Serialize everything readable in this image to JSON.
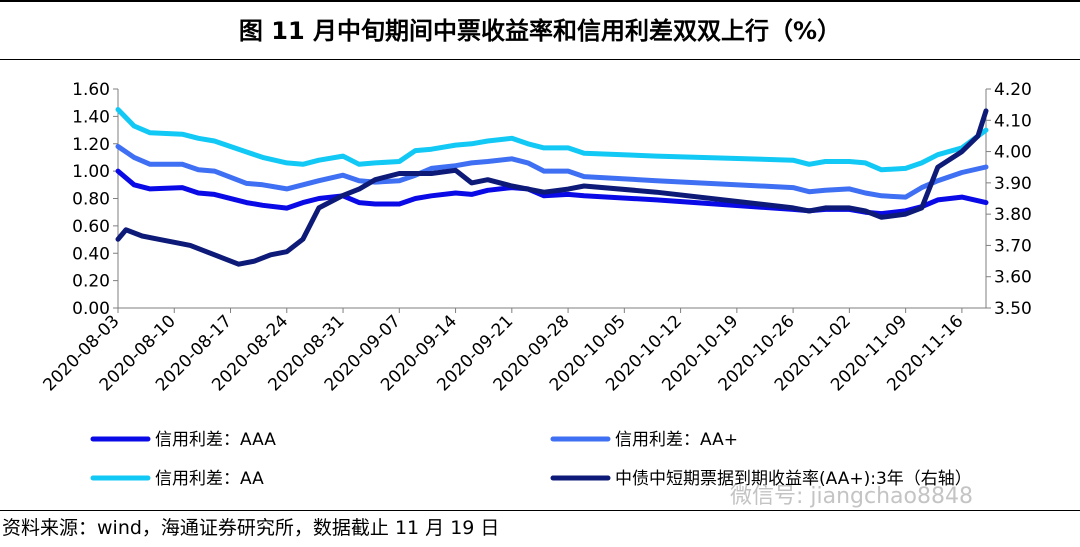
{
  "title": "图 11 月中旬期间中票收益率和信用利差双双上行（%）",
  "source": "资料来源：wind，海通证券研究所，数据截止 11 月 19 日",
  "watermark": "微信号: jiangchao8848",
  "chart_data": {
    "type": "line",
    "left_ylim": [
      0.0,
      1.6
    ],
    "left_ticks": [
      "0.00",
      "0.20",
      "0.40",
      "0.60",
      "0.80",
      "1.00",
      "1.20",
      "1.40",
      "1.60"
    ],
    "right_ylim": [
      3.5,
      4.2
    ],
    "right_ticks": [
      "3.50",
      "3.60",
      "3.70",
      "3.80",
      "3.90",
      "4.00",
      "4.10",
      "4.20"
    ],
    "x_ticks": [
      "2020-08-03",
      "2020-08-10",
      "2020-08-17",
      "2020-08-24",
      "2020-08-31",
      "2020-09-07",
      "2020-09-14",
      "2020-09-21",
      "2020-09-28",
      "2020-10-05",
      "2020-10-12",
      "2020-10-19",
      "2020-10-26",
      "2020-11-02",
      "2020-11-09",
      "2020-11-16"
    ],
    "x_range": [
      "2020-08-03",
      "2020-11-19"
    ],
    "legend_position": "bottom",
    "series": [
      {
        "name": "信用利差：AAA",
        "axis": "left",
        "color": "#0a0ae6",
        "x": [
          "2020-08-03",
          "2020-08-05",
          "2020-08-07",
          "2020-08-11",
          "2020-08-13",
          "2020-08-15",
          "2020-08-19",
          "2020-08-21",
          "2020-08-24",
          "2020-08-26",
          "2020-08-28",
          "2020-08-31",
          "2020-09-02",
          "2020-09-04",
          "2020-09-07",
          "2020-09-09",
          "2020-09-11",
          "2020-09-14",
          "2020-09-16",
          "2020-09-18",
          "2020-09-21",
          "2020-09-23",
          "2020-09-25",
          "2020-09-28",
          "2020-09-30",
          "2020-10-09",
          "2020-10-26",
          "2020-10-28",
          "2020-10-30",
          "2020-11-02",
          "2020-11-04",
          "2020-11-06",
          "2020-11-09",
          "2020-11-11",
          "2020-11-13",
          "2020-11-16",
          "2020-11-19"
        ],
        "y": [
          1.0,
          0.9,
          0.87,
          0.88,
          0.84,
          0.83,
          0.77,
          0.75,
          0.73,
          0.77,
          0.8,
          0.82,
          0.77,
          0.76,
          0.76,
          0.8,
          0.82,
          0.84,
          0.83,
          0.86,
          0.88,
          0.87,
          0.82,
          0.83,
          0.82,
          0.79,
          0.72,
          0.71,
          0.72,
          0.72,
          0.7,
          0.69,
          0.71,
          0.74,
          0.79,
          0.81,
          0.77
        ]
      },
      {
        "name": "信用利差：AA+",
        "axis": "left",
        "color": "#3f6ff2",
        "x": [
          "2020-08-03",
          "2020-08-05",
          "2020-08-07",
          "2020-08-11",
          "2020-08-13",
          "2020-08-15",
          "2020-08-19",
          "2020-08-21",
          "2020-08-24",
          "2020-08-26",
          "2020-08-28",
          "2020-08-31",
          "2020-09-02",
          "2020-09-04",
          "2020-09-07",
          "2020-09-09",
          "2020-09-11",
          "2020-09-14",
          "2020-09-16",
          "2020-09-18",
          "2020-09-21",
          "2020-09-23",
          "2020-09-25",
          "2020-09-28",
          "2020-09-30",
          "2020-10-09",
          "2020-10-26",
          "2020-10-28",
          "2020-10-30",
          "2020-11-02",
          "2020-11-04",
          "2020-11-06",
          "2020-11-09",
          "2020-11-11",
          "2020-11-13",
          "2020-11-16",
          "2020-11-19"
        ],
        "y": [
          1.18,
          1.1,
          1.05,
          1.05,
          1.01,
          1.0,
          0.91,
          0.9,
          0.87,
          0.9,
          0.93,
          0.97,
          0.93,
          0.92,
          0.93,
          0.97,
          1.02,
          1.04,
          1.06,
          1.07,
          1.09,
          1.06,
          1.0,
          1.0,
          0.96,
          0.93,
          0.88,
          0.85,
          0.86,
          0.87,
          0.84,
          0.82,
          0.81,
          0.88,
          0.93,
          0.99,
          1.03
        ]
      },
      {
        "name": "信用利差：AA",
        "axis": "left",
        "color": "#12c8f5",
        "x": [
          "2020-08-03",
          "2020-08-05",
          "2020-08-07",
          "2020-08-11",
          "2020-08-13",
          "2020-08-15",
          "2020-08-19",
          "2020-08-21",
          "2020-08-24",
          "2020-08-26",
          "2020-08-28",
          "2020-08-31",
          "2020-09-02",
          "2020-09-04",
          "2020-09-07",
          "2020-09-09",
          "2020-09-11",
          "2020-09-14",
          "2020-09-16",
          "2020-09-18",
          "2020-09-21",
          "2020-09-23",
          "2020-09-25",
          "2020-09-28",
          "2020-09-30",
          "2020-10-09",
          "2020-10-26",
          "2020-10-28",
          "2020-10-30",
          "2020-11-02",
          "2020-11-04",
          "2020-11-06",
          "2020-11-09",
          "2020-11-11",
          "2020-11-13",
          "2020-11-16",
          "2020-11-19"
        ],
        "y": [
          1.45,
          1.33,
          1.28,
          1.27,
          1.24,
          1.22,
          1.14,
          1.1,
          1.06,
          1.05,
          1.08,
          1.11,
          1.05,
          1.06,
          1.07,
          1.15,
          1.16,
          1.19,
          1.2,
          1.22,
          1.24,
          1.2,
          1.17,
          1.17,
          1.13,
          1.11,
          1.08,
          1.05,
          1.07,
          1.07,
          1.06,
          1.01,
          1.02,
          1.06,
          1.12,
          1.17,
          1.3
        ]
      },
      {
        "name": "中债中短期票据到期收益率(AA+):3年（右轴）",
        "axis": "right",
        "color": "#0d1a78",
        "x": [
          "2020-08-03",
          "2020-08-04",
          "2020-08-06",
          "2020-08-08",
          "2020-08-10",
          "2020-08-12",
          "2020-08-14",
          "2020-08-16",
          "2020-08-18",
          "2020-08-20",
          "2020-08-22",
          "2020-08-24",
          "2020-08-26",
          "2020-08-28",
          "2020-08-31",
          "2020-09-02",
          "2020-09-04",
          "2020-09-07",
          "2020-09-09",
          "2020-09-11",
          "2020-09-14",
          "2020-09-16",
          "2020-09-18",
          "2020-09-21",
          "2020-09-23",
          "2020-09-25",
          "2020-09-28",
          "2020-09-30",
          "2020-10-09",
          "2020-10-26",
          "2020-10-28",
          "2020-10-30",
          "2020-11-02",
          "2020-11-04",
          "2020-11-06",
          "2020-11-09",
          "2020-11-11",
          "2020-11-13",
          "2020-11-16",
          "2020-11-18",
          "2020-11-19"
        ],
        "y": [
          3.72,
          3.75,
          3.73,
          3.72,
          3.71,
          3.7,
          3.68,
          3.66,
          3.64,
          3.65,
          3.67,
          3.68,
          3.72,
          3.82,
          3.86,
          3.88,
          3.91,
          3.93,
          3.93,
          3.93,
          3.94,
          3.9,
          3.91,
          3.89,
          3.88,
          3.87,
          3.88,
          3.89,
          3.87,
          3.82,
          3.81,
          3.82,
          3.82,
          3.81,
          3.79,
          3.8,
          3.82,
          3.95,
          4.0,
          4.05,
          4.13
        ]
      }
    ]
  }
}
